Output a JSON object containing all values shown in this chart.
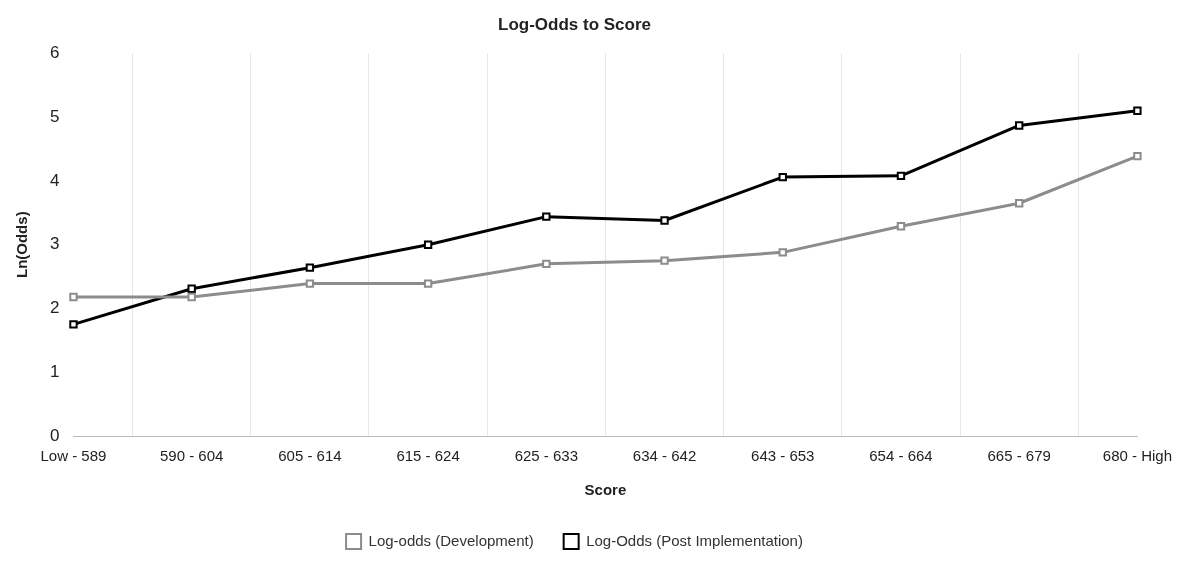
{
  "chart_data": {
    "type": "line",
    "title": "Log-Odds to Score",
    "xlabel": "Score",
    "ylabel": "Ln(Odds)",
    "categories": [
      "Low - 589",
      "590 - 604",
      "605 - 614",
      "615 - 624",
      "625 - 633",
      "634 - 642",
      "643 - 653",
      "654 - 664",
      "665 - 679",
      "680 - High"
    ],
    "series": [
      {
        "name": "Log-odds (Development)",
        "color": "#8c8c8c",
        "values": [
          2.18,
          2.18,
          2.39,
          2.39,
          2.7,
          2.75,
          2.88,
          3.29,
          3.65,
          4.39
        ]
      },
      {
        "name": "Log-Odds (Post Implementation)",
        "color": "#000000",
        "values": [
          1.75,
          2.31,
          2.64,
          3.0,
          3.44,
          3.38,
          4.06,
          4.08,
          4.87,
          5.1
        ]
      }
    ],
    "ylim": [
      0,
      6
    ],
    "yticks": [
      0,
      1,
      2,
      3,
      4,
      5,
      6
    ],
    "grid": "x",
    "legend": "bottom",
    "marker": "square",
    "line_style": "solid"
  }
}
